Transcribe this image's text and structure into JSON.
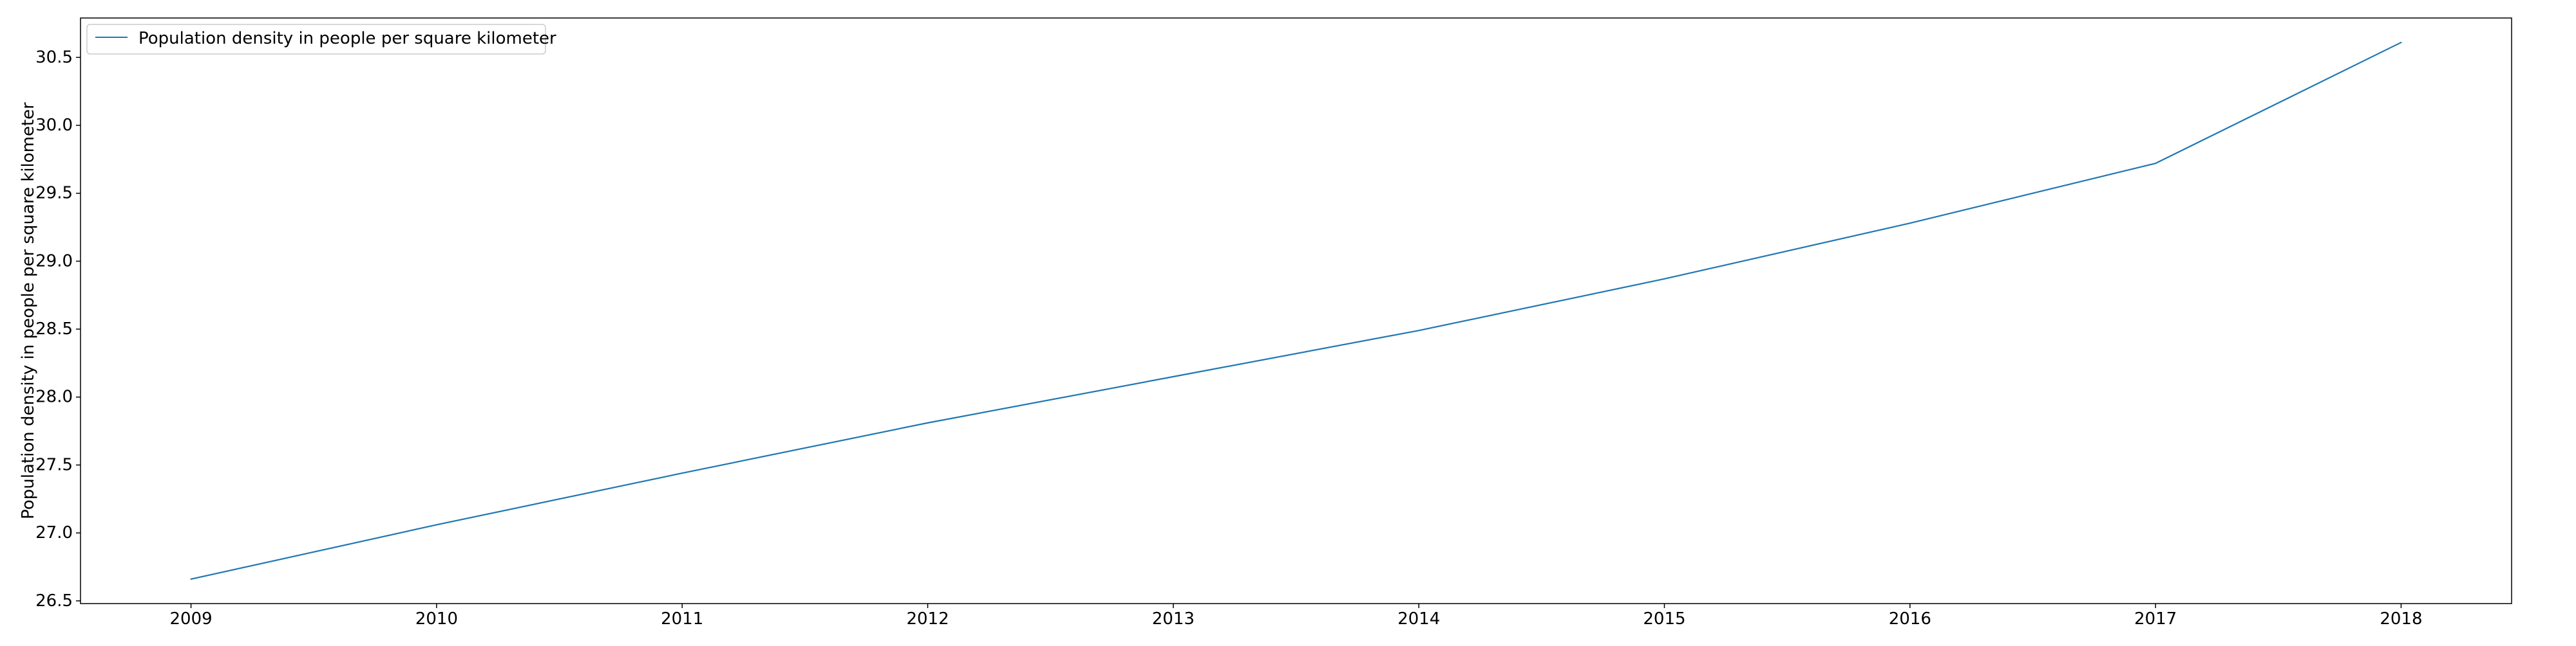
{
  "chart_data": {
    "type": "line",
    "title": "",
    "xlabel": "",
    "ylabel": "Population density in people per square kilometer",
    "x": [
      2009,
      2010,
      2011,
      2012,
      2013,
      2014,
      2015,
      2016,
      2017,
      2018
    ],
    "series": [
      {
        "name": "Population density in people per square kilometer",
        "values": [
          26.66,
          27.06,
          27.44,
          27.81,
          28.15,
          28.49,
          28.87,
          29.28,
          29.72,
          30.61
        ],
        "color": "#1f77b4"
      }
    ],
    "xlim": [
      2008.55,
      2018.45
    ],
    "ylim": [
      26.48,
      30.79
    ],
    "x_ticks": [
      "2009",
      "2010",
      "2011",
      "2012",
      "2013",
      "2014",
      "2015",
      "2016",
      "2017",
      "2018"
    ],
    "y_ticks": [
      "26.5",
      "27.0",
      "27.5",
      "28.0",
      "28.5",
      "29.0",
      "29.5",
      "30.0",
      "30.5"
    ],
    "grid": false,
    "legend_position": "top-left"
  }
}
